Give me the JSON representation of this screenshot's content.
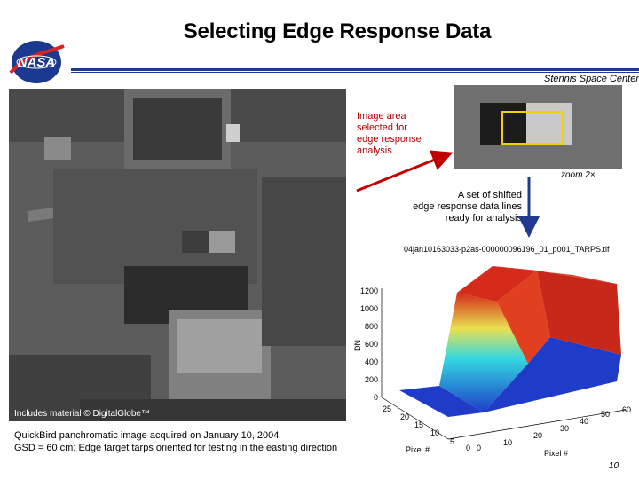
{
  "slide": {
    "title": "Selecting Edge Response Data",
    "center_label": "Stennis Space Center",
    "page_number": "10",
    "logo_text": "NASA"
  },
  "aerial": {
    "copyright": "Includes material © DigitalGlobe™",
    "caption_line1": "QuickBird panchromatic image acquired on January 10, 2004",
    "caption_line2": "GSD = 60 cm; Edge target tarps oriented for testing in the easting direction"
  },
  "zoom": {
    "label": "zoom 2×"
  },
  "annotations": {
    "selected_area": [
      "Image area",
      "selected for",
      "edge response",
      "analysis"
    ],
    "shifted_lines": [
      "A set of shifted",
      "edge response data lines",
      "ready for analysis"
    ]
  },
  "plot": {
    "title": "04jan10163033-p2as-000000096196_01_p001_TARPS.tif",
    "zlabel": "DN",
    "xlabel_left": "Pixel #",
    "xlabel_right": "Pixel #",
    "z_ticks": [
      "0",
      "200",
      "400",
      "600",
      "800",
      "1000",
      "1200"
    ],
    "left_axis_ticks": [
      "25",
      "20",
      "15",
      "10",
      "5",
      "0"
    ],
    "right_axis_ticks": [
      "0",
      "10",
      "20",
      "30",
      "40",
      "50",
      "60"
    ],
    "colors": {
      "low": "#1f3cc8",
      "mid": "#33d8e0",
      "high": "#d62a1a"
    }
  }
}
